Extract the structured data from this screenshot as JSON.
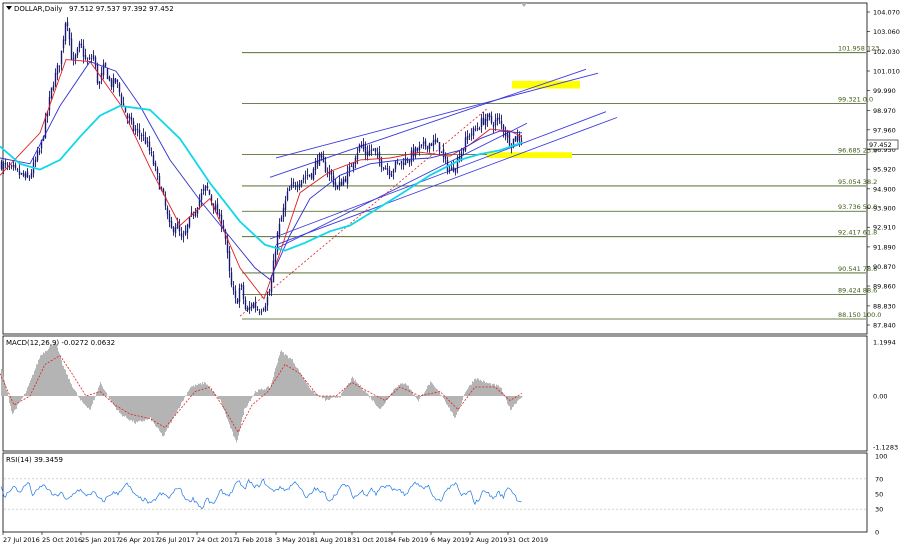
{
  "window": {
    "title": "DOLLAR,Daily",
    "ohlc": "97.512 97.537 97.392 97.452"
  },
  "colors": {
    "candle": "#1a1a6e",
    "ma_red": "#e02020",
    "ma_blue": "#3030d0",
    "ma_cyan": "#10d8e8",
    "channel": "#3a3ae0",
    "fib": "#3c5a14",
    "highlight": "#ffff00",
    "macd_hist": "#b4b4b4",
    "macd_signal": "#e02020",
    "rsi_line": "#1e78e6"
  },
  "chart_data": [
    {
      "type": "candlestick",
      "title": "DOLLAR,Daily",
      "ohlc_text": "97.512 97.537 97.392 97.452",
      "current_price": "97.452",
      "x_tick_labels": [
        "27 Jul 2016",
        "25 Oct 2016",
        "25 Jan 2017",
        "26 Apr 2017",
        "26 Jul 2017",
        "24 Oct 2017",
        "1 Feb 2018",
        "3 May 2018",
        "1 Aug 2018",
        "31 Oct 2018",
        "4 Feb 2019",
        "6 May 2019",
        "2 Aug 2019",
        "31 Oct 2019"
      ],
      "y_tick_labels": [
        "104.070",
        "103.060",
        "102.030",
        "101.010",
        "99.990",
        "98.970",
        "97.960",
        "96.950",
        "95.920",
        "94.900",
        "93.900",
        "92.910",
        "91.890",
        "90.870",
        "89.860",
        "88.830",
        "87.840"
      ],
      "ylim": [
        87.84,
        104.55
      ],
      "price_path": [
        [
          0,
          96.2
        ],
        [
          14,
          95.8
        ],
        [
          28,
          95.4
        ],
        [
          40,
          97.0
        ],
        [
          52,
          100.3
        ],
        [
          60,
          101.6
        ],
        [
          66,
          104.0
        ],
        [
          72,
          101.3
        ],
        [
          80,
          102.4
        ],
        [
          86,
          101.4
        ],
        [
          93,
          101.8
        ],
        [
          98,
          100.2
        ],
        [
          104,
          101.3
        ],
        [
          110,
          100.3
        ],
        [
          116,
          100.5
        ],
        [
          122,
          99.3
        ],
        [
          128,
          98.5
        ],
        [
          134,
          97.9
        ],
        [
          140,
          97.8
        ],
        [
          146,
          97.3
        ],
        [
          152,
          96.4
        ],
        [
          158,
          95.3
        ],
        [
          164,
          94.2
        ],
        [
          170,
          92.7
        ],
        [
          176,
          93.1
        ],
        [
          182,
          92.1
        ],
        [
          188,
          93.1
        ],
        [
          194,
          93.8
        ],
        [
          200,
          94.5
        ],
        [
          206,
          95.0
        ],
        [
          212,
          94.2
        ],
        [
          218,
          93.5
        ],
        [
          224,
          92.8
        ],
        [
          230,
          90.0
        ],
        [
          236,
          88.9
        ],
        [
          240,
          90.0
        ],
        [
          246,
          88.4
        ],
        [
          252,
          89.0
        ],
        [
          258,
          88.6
        ],
        [
          264,
          88.9
        ],
        [
          270,
          89.6
        ],
        [
          276,
          92.3
        ],
        [
          282,
          93.6
        ],
        [
          288,
          94.8
        ],
        [
          294,
          95.1
        ],
        [
          300,
          95.4
        ],
        [
          306,
          95.6
        ],
        [
          312,
          95.7
        ],
        [
          318,
          96.6
        ],
        [
          324,
          96.0
        ],
        [
          330,
          95.7
        ],
        [
          336,
          94.9
        ],
        [
          342,
          95.3
        ],
        [
          348,
          95.7
        ],
        [
          354,
          96.6
        ],
        [
          360,
          97.2
        ],
        [
          366,
          96.7
        ],
        [
          372,
          97.0
        ],
        [
          378,
          96.4
        ],
        [
          384,
          96.1
        ],
        [
          390,
          95.8
        ],
        [
          396,
          96.2
        ],
        [
          402,
          96.3
        ],
        [
          408,
          96.5
        ],
        [
          414,
          96.8
        ],
        [
          420,
          97.0
        ],
        [
          426,
          97.2
        ],
        [
          432,
          97.3
        ],
        [
          438,
          97.2
        ],
        [
          444,
          96.3
        ],
        [
          450,
          95.8
        ],
        [
          456,
          96.3
        ],
        [
          462,
          97.0
        ],
        [
          468,
          97.7
        ],
        [
          474,
          97.9
        ],
        [
          480,
          98.3
        ],
        [
          486,
          98.6
        ],
        [
          492,
          98.3
        ],
        [
          498,
          98.5
        ],
        [
          504,
          97.9
        ],
        [
          510,
          97.3
        ],
        [
          516,
          97.6
        ],
        [
          522,
          97.5
        ]
      ],
      "moving_averages": [
        {
          "color": "#e02020",
          "path": [
            [
              0,
              95.6
            ],
            [
              40,
              97.8
            ],
            [
              66,
              101.6
            ],
            [
              90,
              101.5
            ],
            [
              120,
              99.3
            ],
            [
              150,
              96.0
            ],
            [
              180,
              93.0
            ],
            [
              210,
              94.4
            ],
            [
              240,
              90.8
            ],
            [
              264,
              89.2
            ],
            [
              280,
              91.6
            ],
            [
              300,
              94.7
            ],
            [
              330,
              95.8
            ],
            [
              360,
              96.4
            ],
            [
              390,
              96.5
            ],
            [
              420,
              96.8
            ],
            [
              450,
              96.6
            ],
            [
              470,
              97.2
            ],
            [
              490,
              98.0
            ],
            [
              510,
              97.9
            ],
            [
              522,
              97.6
            ]
          ]
        },
        {
          "color": "#3030d0",
          "path": [
            [
              0,
              96.5
            ],
            [
              30,
              96.2
            ],
            [
              60,
              99.2
            ],
            [
              90,
              101.5
            ],
            [
              116,
              101.0
            ],
            [
              140,
              99.2
            ],
            [
              170,
              96.4
            ],
            [
              200,
              94.3
            ],
            [
              230,
              92.4
            ],
            [
              255,
              90.8
            ],
            [
              270,
              90.2
            ],
            [
              290,
              92.5
            ],
            [
              310,
              94.4
            ],
            [
              340,
              95.6
            ],
            [
              370,
              96.2
            ],
            [
              400,
              96.4
            ],
            [
              430,
              96.5
            ],
            [
              460,
              96.9
            ],
            [
              480,
              97.5
            ],
            [
              500,
              97.9
            ],
            [
              522,
              97.8
            ]
          ]
        },
        {
          "color": "#10d8e8",
          "path": [
            [
              0,
              97.1
            ],
            [
              20,
              96.2
            ],
            [
              40,
              95.9
            ],
            [
              60,
              96.4
            ],
            [
              80,
              97.6
            ],
            [
              100,
              98.7
            ],
            [
              120,
              99.2
            ],
            [
              150,
              99.0
            ],
            [
              180,
              97.5
            ],
            [
              210,
              95.2
            ],
            [
              240,
              93.2
            ],
            [
              265,
              92.0
            ],
            [
              285,
              91.7
            ],
            [
              305,
              92.1
            ],
            [
              330,
              92.7
            ],
            [
              350,
              93.0
            ],
            [
              375,
              93.8
            ],
            [
              400,
              94.6
            ],
            [
              430,
              95.6
            ],
            [
              460,
              96.4
            ],
            [
              480,
              96.7
            ],
            [
              500,
              96.9
            ],
            [
              522,
              97.3
            ]
          ]
        }
      ],
      "channels": [
        [
          [
            270,
            95.5
          ],
          [
            586,
            101.1
          ]
        ],
        [
          [
            276,
            96.5
          ],
          [
            598,
            100.9
          ]
        ],
        [
          [
            270,
            92.3
          ],
          [
            606,
            98.9
          ]
        ],
        [
          [
            276,
            92.0
          ],
          [
            617,
            98.6
          ]
        ],
        [
          [
            276,
            91.8
          ],
          [
            527,
            98.3
          ]
        ]
      ],
      "fib_dashed_line": [
        [
          240,
          88.3
        ],
        [
          488,
          99.1
        ]
      ],
      "fib_levels": [
        {
          "label": "101.958 123.",
          "price": 101.96,
          "x0": 242
        },
        {
          "label": "99.321 0.0",
          "price": 99.32,
          "x0": 242
        },
        {
          "label": "96.685 23.6",
          "price": 96.68,
          "x0": 242
        },
        {
          "label": "95.054 38.2",
          "price": 95.05,
          "x0": 242
        },
        {
          "label": "93.736 50.0",
          "price": 93.74,
          "x0": 242
        },
        {
          "label": "92.417 61.8",
          "price": 92.42,
          "x0": 242
        },
        {
          "label": "90.541 78.6",
          "price": 90.54,
          "x0": 242
        },
        {
          "label": "89.424 88.6",
          "price": 89.42,
          "x0": 242
        },
        {
          "label": "88.150 100.0",
          "price": 88.15,
          "x0": 242
        }
      ],
      "highlight_zones": [
        {
          "x0": 512,
          "x1": 580,
          "y_price_top": 100.5,
          "y_price_bottom": 100.1
        },
        {
          "x0": 487,
          "x1": 572,
          "y_price_top": 96.8,
          "y_price_bottom": 96.5
        }
      ]
    },
    {
      "type": "bar",
      "title": "MACD(12,26,9) -0.0272 0.0632",
      "y_tick_labels": [
        "1.1994",
        "0.00",
        "-1.1283"
      ],
      "ylim": [
        -1.1283,
        1.1994
      ],
      "histogram_path": [
        [
          0,
          0.7
        ],
        [
          12,
          -0.4
        ],
        [
          26,
          0.1
        ],
        [
          40,
          0.9
        ],
        [
          55,
          1.2
        ],
        [
          62,
          0.7
        ],
        [
          70,
          0.3
        ],
        [
          80,
          -0.1
        ],
        [
          90,
          -0.3
        ],
        [
          100,
          0.3
        ],
        [
          110,
          -0.1
        ],
        [
          120,
          -0.4
        ],
        [
          135,
          -0.6
        ],
        [
          150,
          -0.5
        ],
        [
          163,
          -0.9
        ],
        [
          175,
          -0.4
        ],
        [
          190,
          0.2
        ],
        [
          205,
          0.3
        ],
        [
          220,
          -0.1
        ],
        [
          236,
          -1.05
        ],
        [
          244,
          -0.3
        ],
        [
          255,
          0.1
        ],
        [
          270,
          0.2
        ],
        [
          280,
          1.0
        ],
        [
          292,
          0.8
        ],
        [
          300,
          0.5
        ],
        [
          312,
          0.1
        ],
        [
          326,
          -0.1
        ],
        [
          340,
          0.0
        ],
        [
          352,
          0.4
        ],
        [
          365,
          0.1
        ],
        [
          380,
          -0.3
        ],
        [
          395,
          0.2
        ],
        [
          405,
          0.3
        ],
        [
          418,
          -0.1
        ],
        [
          430,
          0.3
        ],
        [
          442,
          0.0
        ],
        [
          455,
          -0.5
        ],
        [
          465,
          0.1
        ],
        [
          475,
          0.4
        ],
        [
          485,
          0.3
        ],
        [
          500,
          0.2
        ],
        [
          510,
          -0.3
        ],
        [
          520,
          -0.03
        ]
      ],
      "signal_path": [
        [
          0,
          0.5
        ],
        [
          14,
          -0.2
        ],
        [
          30,
          0.0
        ],
        [
          45,
          0.7
        ],
        [
          60,
          0.9
        ],
        [
          72,
          0.5
        ],
        [
          86,
          0.0
        ],
        [
          100,
          0.1
        ],
        [
          115,
          -0.2
        ],
        [
          130,
          -0.4
        ],
        [
          150,
          -0.5
        ],
        [
          165,
          -0.7
        ],
        [
          180,
          -0.3
        ],
        [
          195,
          0.1
        ],
        [
          210,
          0.2
        ],
        [
          225,
          -0.3
        ],
        [
          238,
          -0.8
        ],
        [
          252,
          -0.2
        ],
        [
          268,
          0.1
        ],
        [
          285,
          0.7
        ],
        [
          300,
          0.5
        ],
        [
          318,
          0.0
        ],
        [
          336,
          0.0
        ],
        [
          352,
          0.3
        ],
        [
          368,
          0.1
        ],
        [
          385,
          -0.1
        ],
        [
          400,
          0.2
        ],
        [
          420,
          0.0
        ],
        [
          440,
          0.1
        ],
        [
          458,
          -0.3
        ],
        [
          475,
          0.2
        ],
        [
          495,
          0.2
        ],
        [
          510,
          -0.1
        ],
        [
          522,
          0.06
        ]
      ]
    },
    {
      "type": "line",
      "title": "RSI(14) 39.3459",
      "y_tick_labels": [
        "100",
        "70",
        "50",
        "30",
        "0"
      ],
      "ylim": [
        0,
        100
      ],
      "levels": [
        70,
        30
      ],
      "series": [
        {
          "name": "RSI(14)",
          "color": "#1e78e6",
          "values": [
            62,
            45,
            55,
            60,
            52,
            58,
            66,
            48,
            55,
            62,
            58,
            50,
            47,
            53,
            41,
            46,
            53,
            56,
            48,
            50,
            52,
            44,
            40,
            47,
            52,
            50,
            58,
            63,
            55,
            46,
            44,
            42,
            36,
            43,
            50,
            49,
            45,
            53,
            60,
            48,
            40,
            44,
            38,
            30,
            45,
            36,
            42,
            55,
            49,
            50,
            62,
            66,
            55,
            69,
            58,
            61,
            68,
            59,
            54,
            57,
            58,
            55,
            62,
            66,
            57,
            44,
            49,
            58,
            53,
            51,
            41,
            47,
            55,
            62,
            61,
            46,
            48,
            54,
            49,
            58,
            49,
            61,
            59,
            60,
            54,
            57,
            48,
            54,
            65,
            61,
            56,
            63,
            46,
            42,
            43,
            57,
            59,
            64,
            48,
            50,
            53,
            38,
            44,
            57,
            49,
            44,
            53,
            45,
            60,
            53,
            43,
            39
          ]
        }
      ]
    }
  ]
}
